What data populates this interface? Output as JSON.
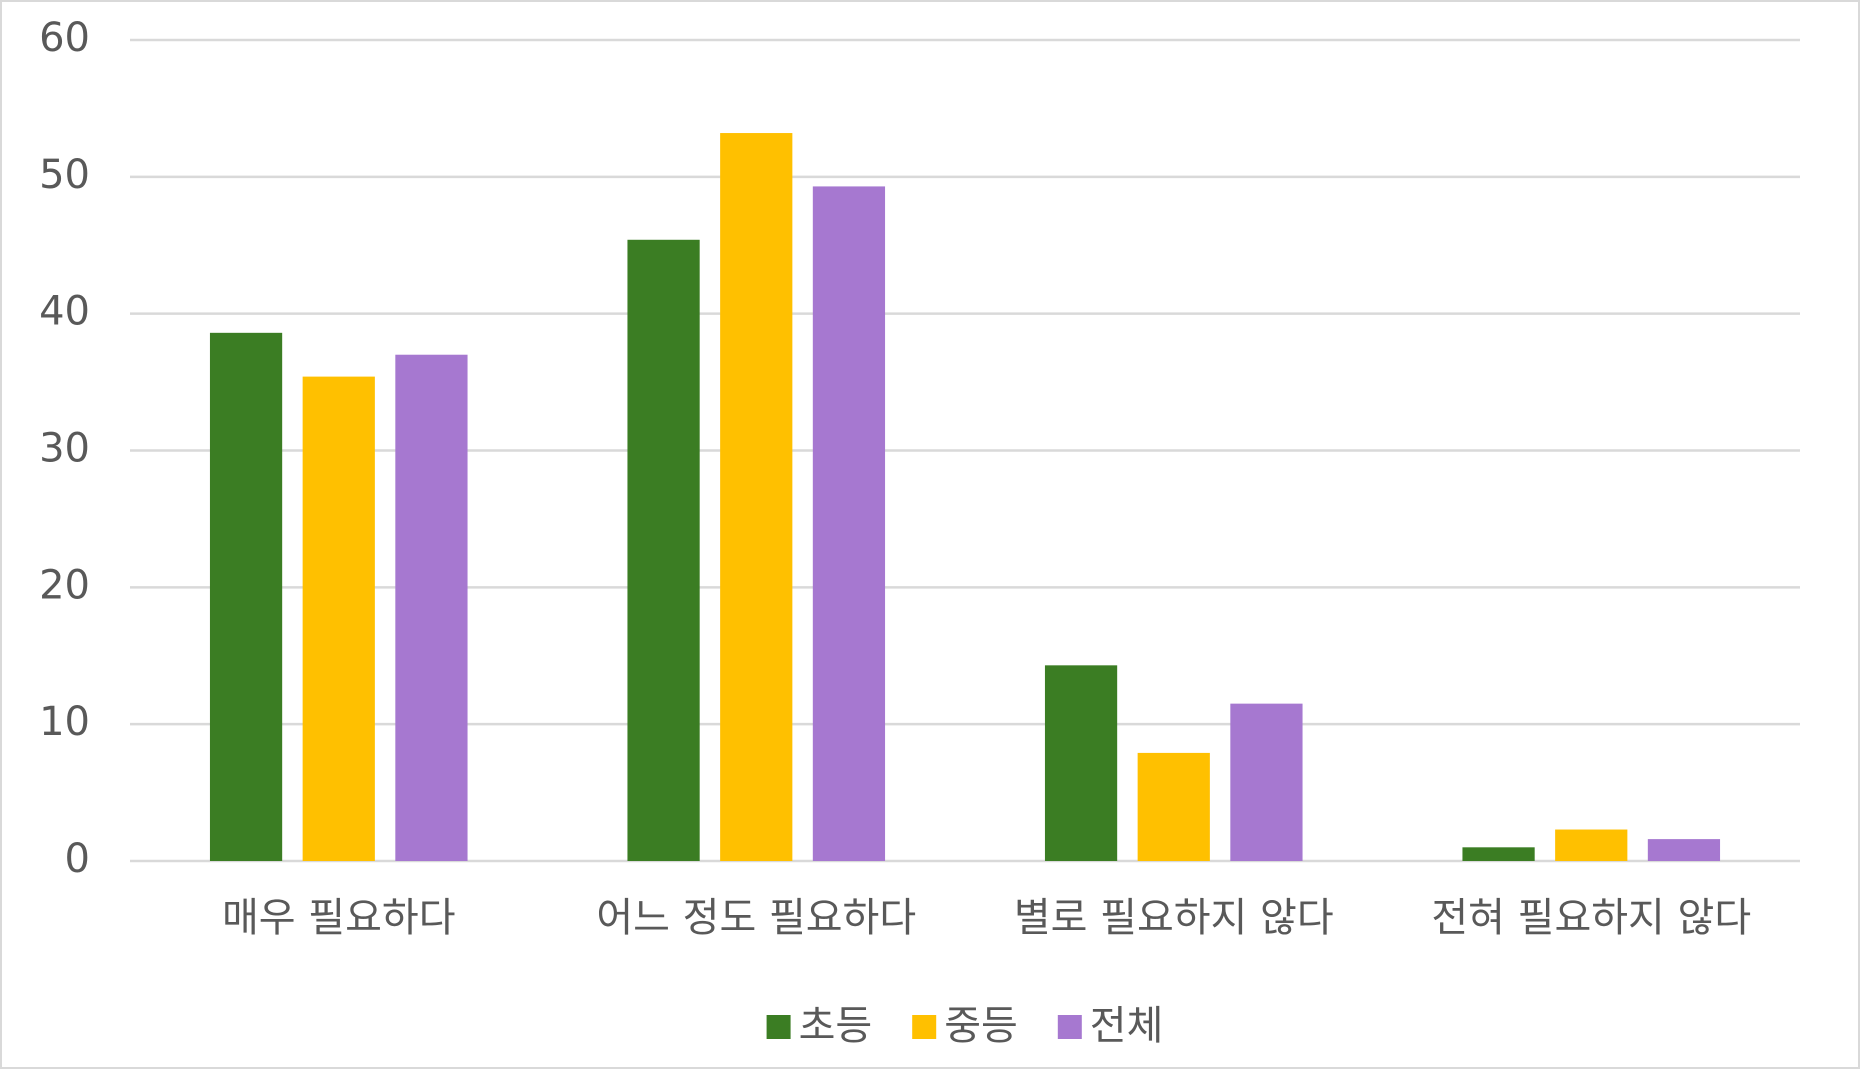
{
  "chart_data": {
    "type": "bar",
    "categories": [
      "매우 필요하다",
      "어느 정도 필요하다",
      "별로 필요하지 않다",
      "전혀 필요하지 않다"
    ],
    "series": [
      {
        "name": "초등",
        "color": "#3b7d23",
        "values": [
          38.6,
          45.4,
          14.3,
          1.0
        ]
      },
      {
        "name": "중등",
        "color": "#ffc000",
        "values": [
          35.4,
          53.2,
          7.9,
          2.3
        ]
      },
      {
        "name": "전체",
        "color": "#a678d0",
        "values": [
          37.0,
          49.3,
          11.5,
          1.6
        ]
      }
    ],
    "ylim": [
      0,
      60
    ],
    "yticks": [
      0,
      10,
      20,
      30,
      40,
      50,
      60
    ],
    "grid": true,
    "legend": "bottom"
  }
}
